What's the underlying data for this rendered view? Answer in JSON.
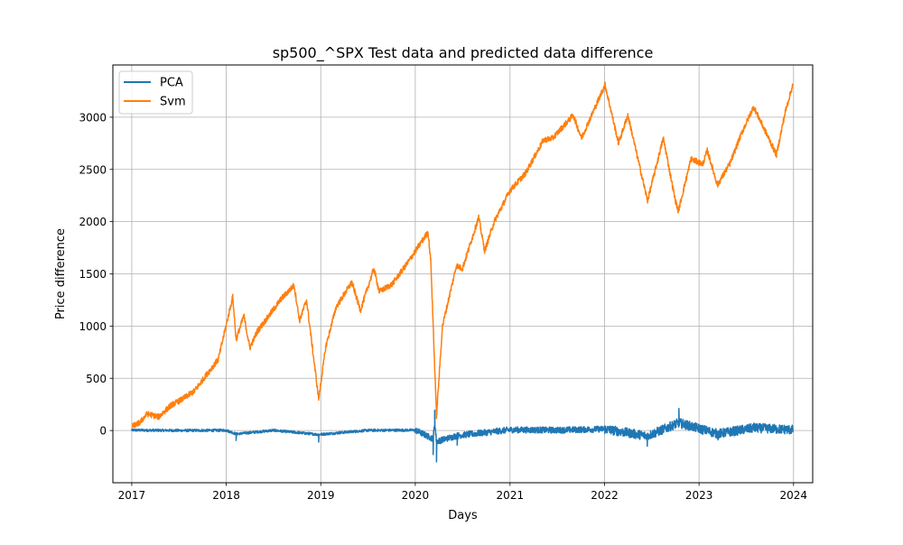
{
  "chart_data": {
    "type": "line",
    "title": "sp500_^SPX Test data and predicted data difference",
    "xlabel": "Days",
    "ylabel": "Price difference",
    "xlim": [
      "2016-10-20",
      "2024-03-15"
    ],
    "ylim": [
      -500,
      3500
    ],
    "x_ticks": [
      "2017-01-01",
      "2018-01-01",
      "2019-01-01",
      "2020-01-01",
      "2021-01-01",
      "2022-01-01",
      "2023-01-01",
      "2024-01-01"
    ],
    "x_tick_labels": [
      "2017",
      "2018",
      "2019",
      "2020",
      "2021",
      "2022",
      "2023",
      "2024"
    ],
    "y_ticks": [
      0,
      500,
      1000,
      1500,
      2000,
      2500,
      3000
    ],
    "y_tick_labels": [
      "0",
      "500",
      "1000",
      "1500",
      "2000",
      "2500",
      "3000"
    ],
    "grid": true,
    "legend_position": "top-left",
    "series": [
      {
        "name": "PCA",
        "color": "#1f77b4",
        "x": [
          "2017-01-01",
          "2017-07-01",
          "2018-01-01",
          "2018-02-08",
          "2018-07-01",
          "2018-12-24",
          "2019-07-01",
          "2020-01-01",
          "2020-03-10",
          "2020-03-16",
          "2020-03-23",
          "2020-06-11",
          "2021-01-01",
          "2021-07-01",
          "2022-01-01",
          "2022-06-15",
          "2022-10-15",
          "2023-03-15",
          "2023-08-01",
          "2023-12-29"
        ],
        "y": [
          10,
          0,
          5,
          -95,
          5,
          -110,
          5,
          10,
          -230,
          195,
          -300,
          -140,
          20,
          10,
          40,
          -150,
          210,
          -90,
          70,
          20
        ]
      },
      {
        "name": "Svm",
        "color": "#ff7f0e",
        "x": [
          "2017-01-03",
          "2017-02-01",
          "2017-03-01",
          "2017-04-15",
          "2017-06-01",
          "2017-07-15",
          "2017-09-01",
          "2017-10-15",
          "2017-12-01",
          "2018-01-26",
          "2018-02-08",
          "2018-03-10",
          "2018-04-02",
          "2018-05-01",
          "2018-06-15",
          "2018-08-01",
          "2018-09-20",
          "2018-10-11",
          "2018-11-07",
          "2018-12-24",
          "2019-01-20",
          "2019-03-01",
          "2019-05-01",
          "2019-06-03",
          "2019-07-25",
          "2019-08-15",
          "2019-10-03",
          "2019-12-01",
          "2020-02-19",
          "2020-03-01",
          "2020-03-23",
          "2020-04-15",
          "2020-06-08",
          "2020-07-01",
          "2020-09-02",
          "2020-09-25",
          "2020-11-01",
          "2021-01-01",
          "2021-03-01",
          "2021-05-10",
          "2021-06-15",
          "2021-09-02",
          "2021-10-04",
          "2022-01-03",
          "2022-02-24",
          "2022-04-01",
          "2022-06-16",
          "2022-08-16",
          "2022-09-30",
          "2022-10-13",
          "2022-12-01",
          "2023-01-15",
          "2023-02-02",
          "2023-03-13",
          "2023-05-01",
          "2023-06-15",
          "2023-07-31",
          "2023-10-27",
          "2023-11-30",
          "2023-12-29"
        ],
        "y": [
          40,
          75,
          160,
          130,
          240,
          300,
          380,
          530,
          680,
          1280,
          870,
          1100,
          790,
          950,
          1100,
          1260,
          1390,
          1050,
          1250,
          300,
          800,
          1180,
          1420,
          1150,
          1550,
          1330,
          1400,
          1600,
          1900,
          1620,
          140,
          1000,
          1580,
          1550,
          2040,
          1720,
          2000,
          2300,
          2460,
          2780,
          2800,
          3020,
          2800,
          3310,
          2750,
          3020,
          2200,
          2800,
          2220,
          2100,
          2600,
          2550,
          2680,
          2350,
          2560,
          2850,
          3100,
          2640,
          3050,
          3310
        ]
      }
    ]
  }
}
